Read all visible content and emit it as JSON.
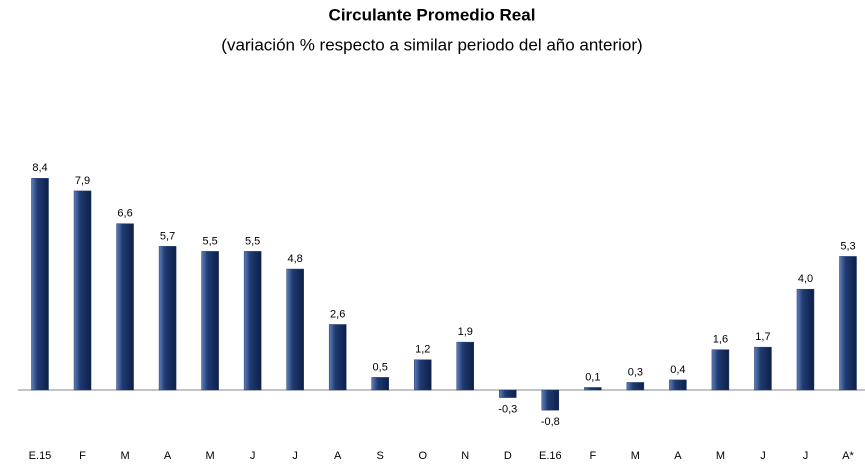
{
  "chart_data": {
    "type": "bar",
    "title": "Circulante Promedio Real",
    "subtitle": "(variación % respecto a similar periodo del año anterior)",
    "categories": [
      "E.15",
      "F",
      "M",
      "A",
      "M",
      "J",
      "J",
      "A",
      "S",
      "O",
      "N",
      "D",
      "E.16",
      "F",
      "M",
      "A",
      "M",
      "J",
      "J",
      "A*"
    ],
    "values": [
      8.4,
      7.9,
      6.6,
      5.7,
      5.5,
      5.5,
      4.8,
      2.6,
      0.5,
      1.2,
      1.9,
      -0.3,
      -0.8,
      0.1,
      0.3,
      0.4,
      1.6,
      1.7,
      4.0,
      5.3
    ],
    "value_labels": [
      "8,4",
      "7,9",
      "6,6",
      "5,7",
      "5,5",
      "5,5",
      "4,8",
      "2,6",
      "0,5",
      "1,2",
      "1,9",
      "-0,3",
      "-0,8",
      "0,1",
      "0,3",
      "0,4",
      "1,6",
      "1,7",
      "4,0",
      "5,3"
    ],
    "color": "#1f3b73"
  }
}
